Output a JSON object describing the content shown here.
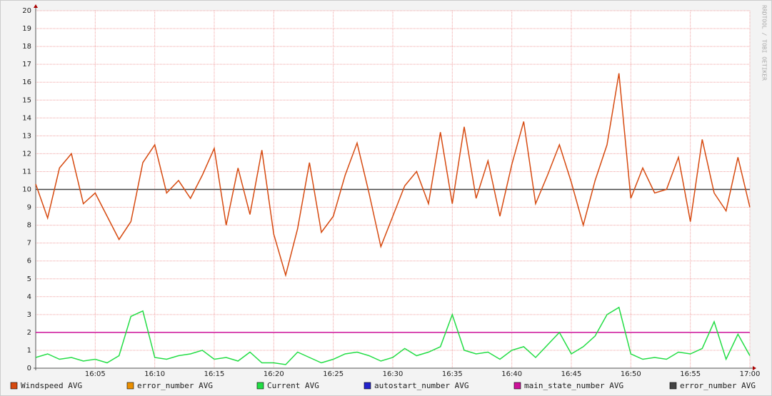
{
  "chart_data": {
    "type": "line",
    "watermark": "RRDTOOL / TOBI OETIKER",
    "x": [
      "16:00",
      "16:01",
      "16:02",
      "16:03",
      "16:04",
      "16:05",
      "16:06",
      "16:07",
      "16:08",
      "16:09",
      "16:10",
      "16:11",
      "16:12",
      "16:13",
      "16:14",
      "16:15",
      "16:16",
      "16:17",
      "16:18",
      "16:19",
      "16:20",
      "16:21",
      "16:22",
      "16:23",
      "16:24",
      "16:25",
      "16:26",
      "16:27",
      "16:28",
      "16:29",
      "16:30",
      "16:31",
      "16:32",
      "16:33",
      "16:34",
      "16:35",
      "16:36",
      "16:37",
      "16:38",
      "16:39",
      "16:40",
      "16:41",
      "16:42",
      "16:43",
      "16:44",
      "16:45",
      "16:46",
      "16:47",
      "16:48",
      "16:49",
      "16:50",
      "16:51",
      "16:52",
      "16:53",
      "16:54",
      "16:55",
      "16:56",
      "16:57",
      "16:58",
      "16:59",
      "17:00"
    ],
    "xlim": [
      "16:00",
      "17:00"
    ],
    "xticks": [
      "16:05",
      "16:10",
      "16:15",
      "16:20",
      "16:25",
      "16:30",
      "16:35",
      "16:40",
      "16:45",
      "16:50",
      "16:55",
      "17:00"
    ],
    "ylim": [
      0,
      20
    ],
    "yticks": [
      0,
      1,
      2,
      3,
      4,
      5,
      6,
      7,
      8,
      9,
      10,
      11,
      12,
      13,
      14,
      15,
      16,
      17,
      18,
      19,
      20
    ],
    "grid": true,
    "legend": "bottom",
    "series": [
      {
        "name": "Windspeed AVG",
        "color": "#d64a10",
        "values": [
          10.3,
          8.4,
          11.2,
          12.0,
          9.2,
          9.8,
          8.5,
          7.2,
          8.2,
          11.5,
          12.5,
          9.8,
          10.5,
          9.5,
          10.8,
          12.3,
          8.0,
          11.2,
          8.6,
          12.2,
          7.5,
          5.2,
          7.8,
          11.5,
          7.6,
          8.5,
          10.8,
          12.6,
          9.8,
          6.8,
          8.5,
          10.2,
          11.0,
          9.2,
          13.2,
          9.2,
          13.5,
          9.5,
          11.6,
          8.5,
          11.4,
          13.8,
          9.2,
          10.8,
          12.5,
          10.4,
          8.0,
          10.5,
          12.5,
          16.5,
          9.5,
          11.2,
          9.8,
          10.0,
          11.8,
          8.2,
          12.8,
          9.8,
          8.8,
          11.8,
          9.0
        ]
      },
      {
        "name": "error_number AVG",
        "color": "#ea8f00"
      },
      {
        "name": "Current AVG",
        "color": "#22dd44",
        "values": [
          0.6,
          0.8,
          0.5,
          0.6,
          0.4,
          0.5,
          0.3,
          0.7,
          2.9,
          3.2,
          0.6,
          0.5,
          0.7,
          0.8,
          1.0,
          0.5,
          0.6,
          0.4,
          0.9,
          0.3,
          0.3,
          0.2,
          0.9,
          0.6,
          0.3,
          0.5,
          0.8,
          0.9,
          0.7,
          0.4,
          0.6,
          1.1,
          0.7,
          0.9,
          1.2,
          3.0,
          1.0,
          0.8,
          0.9,
          0.5,
          1.0,
          1.2,
          0.6,
          1.3,
          2.0,
          0.8,
          1.2,
          1.8,
          3.0,
          3.4,
          0.8,
          0.5,
          0.6,
          0.5,
          0.9,
          0.8,
          1.1,
          2.6,
          0.5,
          1.9,
          0.7
        ]
      },
      {
        "name": "autostart_number AVG",
        "color": "#2222cc"
      },
      {
        "name": "main_state_number AVG",
        "color": "#cc1199",
        "values": [
          2,
          2,
          2,
          2,
          2,
          2,
          2,
          2,
          2,
          2,
          2,
          2,
          2,
          2,
          2,
          2,
          2,
          2,
          2,
          2,
          2,
          2,
          2,
          2,
          2,
          2,
          2,
          2,
          2,
          2,
          2,
          2,
          2,
          2,
          2,
          2,
          2,
          2,
          2,
          2,
          2,
          2,
          2,
          2,
          2,
          2,
          2,
          2,
          2,
          2,
          2,
          2,
          2,
          2,
          2,
          2,
          2,
          2,
          2,
          2,
          2
        ]
      },
      {
        "name": "error_number AVG",
        "color": "#444444",
        "values": [
          10,
          10,
          10,
          10,
          10,
          10,
          10,
          10,
          10,
          10,
          10,
          10,
          10,
          10,
          10,
          10,
          10,
          10,
          10,
          10,
          10,
          10,
          10,
          10,
          10,
          10,
          10,
          10,
          10,
          10,
          10,
          10,
          10,
          10,
          10,
          10,
          10,
          10,
          10,
          10,
          10,
          10,
          10,
          10,
          10,
          10,
          10,
          10,
          10,
          10,
          10,
          10,
          10,
          10,
          10,
          10,
          10,
          10,
          10,
          10,
          10
        ]
      }
    ]
  }
}
